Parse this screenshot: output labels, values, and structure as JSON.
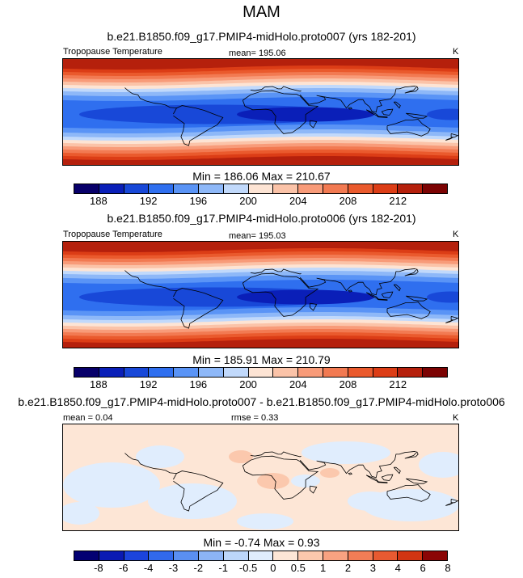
{
  "title": "MAM",
  "panels": [
    {
      "title": "b.e21.B1850.f09_g17.PMIP4-midHolo.proto007 (yrs 182-201)",
      "left_label": "Tropopause Temperature",
      "center_label": "mean= 195.06",
      "right_label": "K",
      "minmax": "Min = 186.06 Max = 210.67",
      "colorbar_ticks": [
        "188",
        "192",
        "196",
        "200",
        "204",
        "208",
        "212"
      ]
    },
    {
      "title": "b.e21.B1850.f09_g17.PMIP4-midHolo.proto006 (yrs 182-201)",
      "left_label": "Tropopause Temperature",
      "center_label": "mean= 195.03",
      "right_label": "K",
      "minmax": "Min = 185.91 Max = 210.79",
      "colorbar_ticks": [
        "188",
        "192",
        "196",
        "200",
        "204",
        "208",
        "212"
      ]
    },
    {
      "title": "b.e21.B1850.f09_g17.PMIP4-midHolo.proto007 - b.e21.B1850.f09_g17.PMIP4-midHolo.proto006",
      "left_label": "mean =  0.04",
      "center_label": "rmse =   0.33",
      "right_label": "K",
      "minmax": "Min =  -0.74 Max =   0.93",
      "colorbar_ticks": [
        "-8",
        "-6",
        "-4",
        "-3",
        "-2",
        "-1",
        "-0.5",
        "0",
        "0.5",
        "1",
        "2",
        "3",
        "4",
        "6",
        "8"
      ]
    }
  ],
  "chart_data": [
    {
      "type": "heatmap",
      "title": "b.e21.B1850.f09_g17.PMIP4-midHolo.proto007 (yrs 182-201)",
      "variable": "Tropopause Temperature",
      "units": "K",
      "mean": 195.06,
      "min": 186.06,
      "max": 210.67,
      "contour_levels": [
        186,
        188,
        190,
        192,
        194,
        196,
        198,
        200,
        202,
        204,
        206,
        208,
        210,
        212,
        214
      ],
      "colorbar_ticks": [
        188,
        192,
        196,
        200,
        204,
        208,
        212
      ]
    },
    {
      "type": "heatmap",
      "title": "b.e21.B1850.f09_g17.PMIP4-midHolo.proto006 (yrs 182-201)",
      "variable": "Tropopause Temperature",
      "units": "K",
      "mean": 195.03,
      "min": 185.91,
      "max": 210.79,
      "contour_levels": [
        186,
        188,
        190,
        192,
        194,
        196,
        198,
        200,
        202,
        204,
        206,
        208,
        210,
        212,
        214
      ],
      "colorbar_ticks": [
        188,
        192,
        196,
        200,
        204,
        208,
        212
      ]
    },
    {
      "type": "heatmap",
      "title": "b.e21.B1850.f09_g17.PMIP4-midHolo.proto007 - b.e21.B1850.f09_g17.PMIP4-midHolo.proto006",
      "units": "K",
      "mean": 0.04,
      "rmse": 0.33,
      "min": -0.74,
      "max": 0.93,
      "contour_levels": [
        -8,
        -6,
        -4,
        -3,
        -2,
        -1,
        -0.5,
        0,
        0.5,
        1,
        2,
        3,
        4,
        6,
        8
      ],
      "colorbar_ticks": [
        -8,
        -6,
        -4,
        -3,
        -2,
        -1,
        -0.5,
        0,
        0.5,
        1,
        2,
        3,
        4,
        6,
        8
      ]
    }
  ],
  "colors": {
    "abs_palette": [
      "#08006a",
      "#0a1fb8",
      "#1848d8",
      "#2f6fef",
      "#5a94f6",
      "#8eb8f8",
      "#c1d9fb",
      "#fde4d4",
      "#fbc3a8",
      "#f89b79",
      "#f27a52",
      "#ea5a2d",
      "#dc3d16",
      "#b5200c",
      "#7c0303"
    ],
    "diff_palette": [
      "#030072",
      "#0a1ab3",
      "#1c44dc",
      "#3169ec",
      "#5a8ff2",
      "#8cb4f6",
      "#bcd6fa",
      "#e0edfd",
      "#fde6d6",
      "#fbc8ad",
      "#f8a281",
      "#f27d56",
      "#e85a31",
      "#d23512",
      "#8b0505"
    ],
    "land": "#000000"
  }
}
